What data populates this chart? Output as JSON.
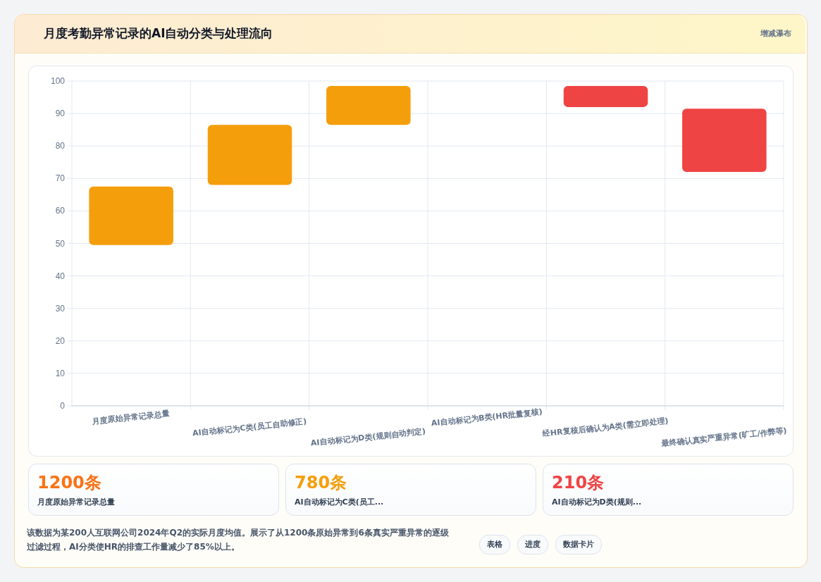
{
  "chart_data": {
    "type": "bar",
    "title": "月度考勤异常记录的AI自动分类与处理流向",
    "subtitle": "增减瀑布",
    "categories": [
      "月度原始异常记录总量",
      "AI自动标记为C类(员工自助修正)",
      "AI自动标记为D类(规则自动判定)",
      "AI自动标记为B类(HR批量复核)",
      "经HR复核后确认为A类(需立即处理)",
      "最终确认真实严重异常(旷工/作弊等)"
    ],
    "values": [
      18,
      18.5,
      12,
      null,
      6.5,
      19.5
    ],
    "base": [
      49.5,
      68,
      86.5,
      null,
      92,
      72
    ],
    "colors": [
      "#f59e0b",
      "#f59e0b",
      "#f59e0b",
      "#f59e0b",
      "#ef4444",
      "#ef4444"
    ],
    "ylim": [
      0,
      100
    ],
    "yticks": [
      0,
      10,
      20,
      30,
      40,
      50,
      60,
      70,
      80,
      90,
      100
    ],
    "grid": true,
    "annotations": [
      "1200条",
      "月度原始异常记录总量",
      "780条",
      "AI自动标记为C类(员工...",
      "210条",
      "AI自动标记为D类(规则...",
      "该数据为某200人互联网公司2024年Q2的实际月度均值。展示了从1200条原始异常到6条真实严重异常的逐级过滤过程，AI分类使HR的排查工作量减少了85%以上。",
      "表格",
      "进度",
      "数据卡片"
    ]
  }
}
